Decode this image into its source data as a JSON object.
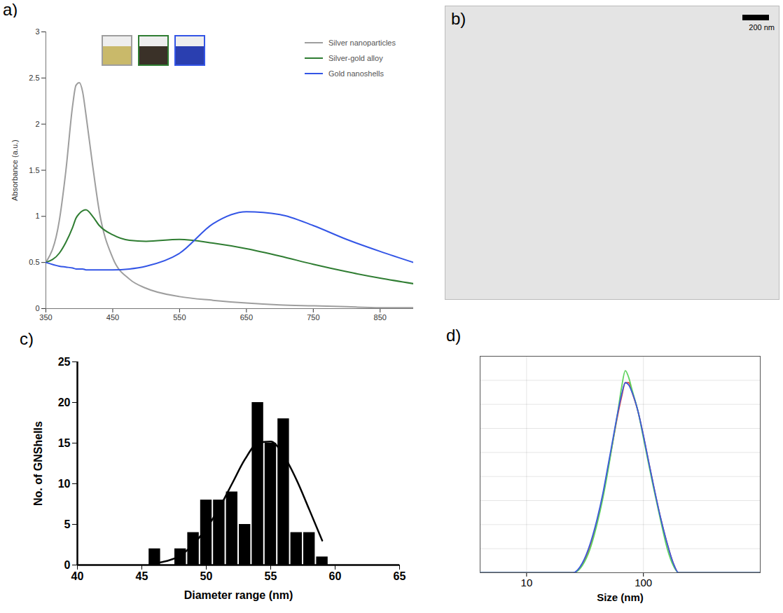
{
  "chart_data": [
    {
      "type": "line",
      "panel_label": "a)",
      "ylabel": "Absorbance (a.u.)",
      "x": [
        350,
        370,
        380,
        390,
        395,
        400,
        405,
        410,
        420,
        430,
        450,
        475,
        500,
        550,
        600,
        650,
        700,
        750,
        800,
        850,
        900
      ],
      "series": [
        {
          "name": "Silver nanoparticles",
          "color": "#9e9e9e",
          "values": [
            0.5,
            0.95,
            1.5,
            2.2,
            2.42,
            2.45,
            2.35,
            2.1,
            1.55,
            1.05,
            0.55,
            0.32,
            0.22,
            0.13,
            0.09,
            0.06,
            0.04,
            0.03,
            0.02,
            0.01,
            0.01
          ]
        },
        {
          "name": "Silver-gold alloy",
          "color": "#2f7d32",
          "values": [
            0.5,
            0.6,
            0.72,
            0.88,
            0.98,
            1.03,
            1.06,
            1.07,
            1.0,
            0.9,
            0.8,
            0.74,
            0.73,
            0.75,
            0.71,
            0.65,
            0.57,
            0.48,
            0.4,
            0.33,
            0.27
          ]
        },
        {
          "name": "Gold nanoshells",
          "color": "#3355e6",
          "values": [
            0.5,
            0.46,
            0.45,
            0.44,
            0.43,
            0.43,
            0.43,
            0.42,
            0.42,
            0.42,
            0.42,
            0.43,
            0.46,
            0.6,
            0.92,
            1.05,
            1.02,
            0.9,
            0.75,
            0.62,
            0.5
          ]
        }
      ],
      "xlim": [
        350,
        900
      ],
      "xticks": [
        350,
        450,
        550,
        650,
        750,
        850
      ],
      "ylim": [
        0,
        3
      ],
      "yticks": [
        0,
        0.5,
        1,
        1.5,
        2,
        2.5,
        3
      ],
      "legend": "top-right",
      "grid": false
    },
    {
      "type": "image",
      "panel_label": "b)",
      "scale_bar": "200 nm"
    },
    {
      "type": "histogram",
      "panel_label": "c)",
      "xlabel": "Diameter range (nm)",
      "ylabel": "No. of GNShells",
      "bins": [
        45.5,
        46.5,
        47.5,
        48.5,
        49.5,
        50.5,
        51.5,
        52.5,
        53.5,
        54.5,
        55.5,
        56.5,
        57.5,
        58.5,
        59.5
      ],
      "counts": [
        2,
        0,
        2,
        4,
        8,
        8,
        9,
        5,
        20,
        15,
        18,
        4,
        4,
        1
      ],
      "color": "#000000",
      "fit": {
        "x": [
          46,
          48,
          50,
          51,
          52,
          53,
          54,
          55,
          56,
          57,
          58,
          59
        ],
        "values": [
          0.2,
          1.2,
          4.5,
          7,
          10,
          13,
          15,
          15.2,
          13.5,
          10.5,
          6.8,
          3
        ],
        "color": "#000000"
      },
      "xlim": [
        40,
        65
      ],
      "xticks": [
        40,
        45,
        50,
        55,
        60,
        65
      ],
      "ylim": [
        0,
        25
      ],
      "yticks": [
        0,
        5,
        10,
        15,
        20,
        25
      ],
      "grid": false
    },
    {
      "type": "line",
      "panel_label": "d)",
      "xlabel": "Size (nm)",
      "x": [
        4,
        25,
        30,
        35,
        40,
        45,
        50,
        55,
        60,
        65,
        70,
        75,
        80,
        90,
        100,
        110,
        120,
        140,
        160,
        180,
        200,
        1000
      ],
      "series": [
        {
          "color": "#e8443a",
          "values": [
            0,
            0,
            0.35,
            1.1,
            2.1,
            3.2,
            4.4,
            5.5,
            6.5,
            7.3,
            7.9,
            7.9,
            7.5,
            6.7,
            5.7,
            4.7,
            3.8,
            2.3,
            1.2,
            0.4,
            0,
            0
          ]
        },
        {
          "color": "#5fd35f",
          "values": [
            0,
            0,
            0.3,
            1.0,
            2.0,
            3.1,
            4.3,
            5.5,
            6.6,
            7.7,
            8.4,
            8.1,
            7.6,
            6.7,
            5.6,
            4.6,
            3.7,
            2.2,
            1.0,
            0.3,
            0,
            0
          ]
        },
        {
          "color": "#3b5bdb",
          "values": [
            0,
            0,
            0.4,
            1.2,
            2.2,
            3.3,
            4.5,
            5.6,
            6.6,
            7.4,
            7.9,
            7.8,
            7.5,
            6.7,
            5.7,
            4.7,
            3.8,
            2.3,
            1.2,
            0.4,
            0,
            0
          ]
        }
      ],
      "xlim": [
        4,
        1000
      ],
      "xticks": [
        10,
        100
      ],
      "ylim": [
        0,
        9
      ],
      "yticks": [
        0,
        1,
        2,
        3,
        4,
        5,
        6,
        7,
        8
      ],
      "log": "x",
      "grid": true,
      "tick_labels": "x"
    }
  ]
}
